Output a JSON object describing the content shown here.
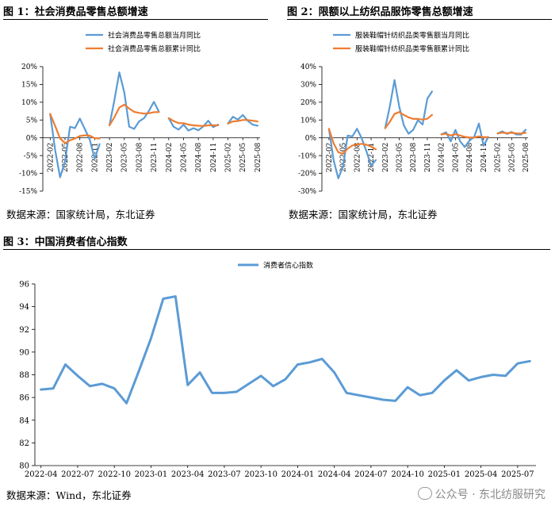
{
  "figure1": {
    "title": "图 1：社会消费品零售总额增速",
    "source": "数据来源：国家统计局，东北证券"
  },
  "figure2": {
    "title": "图 2：限额以上纺织品服饰零售总额增速",
    "source": "数据来源：国家统计局，东北证券"
  },
  "figure3": {
    "title": "图 3：中国消费者信心指数",
    "source": "数据来源：Wind，东北证券"
  },
  "watermark": {
    "text": "公众号 · 东北纺服研究",
    "icon": "wechat-icon"
  },
  "colors": {
    "blue": "#5b9bd5",
    "orange": "#ed7d31",
    "grid": "#d9d9d9"
  },
  "chart_data": [
    {
      "id": "fig1",
      "type": "line",
      "title": "",
      "ylim": [
        -15,
        20
      ],
      "yticks": [
        -15,
        -10,
        -5,
        0,
        5,
        10,
        15,
        20
      ],
      "ytick_labels": [
        "-15%",
        "-10%",
        "-5%",
        "0%",
        "5%",
        "10%",
        "15%",
        "20%"
      ],
      "grid": false,
      "legend_position": "top-center",
      "x": [
        "2022-01",
        "2022-02",
        "2022-03",
        "2022-04",
        "2022-05",
        "2022-06",
        "2022-07",
        "2022-08",
        "2022-09",
        "2022-10",
        "2022-11",
        "2022-12",
        "2023-01",
        "2023-02",
        "2023-03",
        "2023-04",
        "2023-05",
        "2023-06",
        "2023-07",
        "2023-08",
        "2023-09",
        "2023-10",
        "2023-11",
        "2023-12",
        "2024-01",
        "2024-02",
        "2024-03",
        "2024-04",
        "2024-05",
        "2024-06",
        "2024-07",
        "2024-08",
        "2024-09",
        "2024-10",
        "2024-11",
        "2024-12",
        "2025-01",
        "2025-02",
        "2025-03",
        "2025-04",
        "2025-05",
        "2025-06",
        "2025-07",
        "2025-08"
      ],
      "xtick_labels": [
        "2022-02",
        "2022-05",
        "2022-08",
        "2022-11",
        "2023-02",
        "2023-05",
        "2023-08",
        "2023-11",
        "2024-02",
        "2024-05",
        "2024-08",
        "2024-11",
        "2025-02",
        "2025-05",
        "2025-08"
      ],
      "series": [
        {
          "name": "社会消费品零售总额当月同比",
          "color": "#5b9bd5",
          "values": [
            null,
            6.7,
            -3.5,
            -11.1,
            -6.7,
            3.1,
            2.7,
            5.4,
            2.5,
            -0.5,
            -5.9,
            -1.8,
            null,
            3.5,
            10.6,
            18.4,
            12.7,
            3.1,
            2.5,
            4.6,
            5.5,
            7.6,
            10.1,
            7.4,
            null,
            5.5,
            3.1,
            2.3,
            3.7,
            2.0,
            2.7,
            2.1,
            3.2,
            4.8,
            3.0,
            3.7,
            null,
            4.0,
            5.9,
            5.1,
            6.4,
            4.8,
            3.7,
            3.4
          ]
        },
        {
          "name": "社会消费品零售总额累计同比",
          "color": "#ed7d31",
          "values": [
            null,
            6.7,
            3.3,
            -0.2,
            -1.5,
            -0.7,
            -0.2,
            0.5,
            0.7,
            0.6,
            -0.1,
            -0.2,
            null,
            3.5,
            5.8,
            8.5,
            9.3,
            8.2,
            7.3,
            7.0,
            6.8,
            6.9,
            7.2,
            7.2,
            null,
            5.5,
            4.7,
            4.1,
            4.1,
            3.7,
            3.5,
            3.4,
            3.3,
            3.5,
            3.5,
            3.5,
            null,
            4.0,
            4.6,
            4.7,
            5.0,
            5.0,
            4.8,
            4.6
          ]
        }
      ]
    },
    {
      "id": "fig2",
      "type": "line",
      "title": "",
      "ylim": [
        -30,
        40
      ],
      "yticks": [
        -30,
        -20,
        -10,
        0,
        10,
        20,
        30,
        40
      ],
      "ytick_labels": [
        "-30%",
        "-20%",
        "-10%",
        "0%",
        "10%",
        "20%",
        "30%",
        "40%"
      ],
      "grid": false,
      "legend_position": "top-center",
      "x": [
        "2022-01",
        "2022-02",
        "2022-03",
        "2022-04",
        "2022-05",
        "2022-06",
        "2022-07",
        "2022-08",
        "2022-09",
        "2022-10",
        "2022-11",
        "2022-12",
        "2023-01",
        "2023-02",
        "2023-03",
        "2023-04",
        "2023-05",
        "2023-06",
        "2023-07",
        "2023-08",
        "2023-09",
        "2023-10",
        "2023-11",
        "2023-12",
        "2024-01",
        "2024-02",
        "2024-03",
        "2024-04",
        "2024-05",
        "2024-06",
        "2024-07",
        "2024-08",
        "2024-09",
        "2024-10",
        "2024-11",
        "2024-12",
        "2025-01",
        "2025-02",
        "2025-03",
        "2025-04",
        "2025-05",
        "2025-06",
        "2025-07",
        "2025-08"
      ],
      "xtick_labels": [
        "2022-02",
        "2022-05",
        "2022-08",
        "2022-11",
        "2023-02",
        "2023-05",
        "2023-08",
        "2023-11",
        "2024-02",
        "2024-05",
        "2024-08",
        "2024-11",
        "2025-02",
        "2025-05",
        "2025-08"
      ],
      "series": [
        {
          "name": "服装鞋帽针纺织品类零售额当月同比",
          "color": "#5b9bd5",
          "values": [
            null,
            5.0,
            -12.7,
            -22.8,
            -16.2,
            1.2,
            0.8,
            5.1,
            -0.3,
            -7.5,
            -15.6,
            -12.5,
            null,
            5.4,
            17.7,
            32.4,
            17.6,
            6.9,
            2.3,
            4.5,
            9.9,
            7.5,
            22.0,
            26.0,
            null,
            1.9,
            3.1,
            -2.0,
            4.4,
            -1.9,
            -5.2,
            -1.6,
            0.4,
            8.0,
            -4.5,
            0.4,
            null,
            2.4,
            3.6,
            2.2,
            3.3,
            1.9,
            1.8,
            4.5
          ]
        },
        {
          "name": "服装鞋帽针纺织品类零售额累计同比",
          "color": "#ed7d31",
          "values": [
            null,
            5.0,
            -3.2,
            -8.1,
            -9.0,
            -6.1,
            -4.3,
            -3.8,
            -3.4,
            -3.9,
            -4.9,
            -6.5,
            null,
            5.4,
            9.0,
            13.4,
            14.5,
            12.8,
            11.5,
            10.6,
            10.6,
            10.2,
            10.7,
            12.9,
            null,
            1.9,
            2.3,
            1.3,
            2.0,
            1.3,
            0.5,
            0.2,
            0.2,
            0.8,
            0.3,
            0.3,
            null,
            2.4,
            2.9,
            2.6,
            2.8,
            2.5,
            2.4,
            2.8
          ]
        }
      ]
    },
    {
      "id": "fig3",
      "type": "line",
      "title": "",
      "ylim": [
        80,
        96
      ],
      "yticks": [
        80,
        82,
        84,
        86,
        88,
        90,
        92,
        94,
        96
      ],
      "ytick_labels": [
        "80",
        "82",
        "84",
        "86",
        "88",
        "90",
        "92",
        "94",
        "96"
      ],
      "grid": false,
      "legend_position": "top-center",
      "x": [
        "2022-04",
        "2022-05",
        "2022-06",
        "2022-07",
        "2022-08",
        "2022-09",
        "2022-10",
        "2022-11",
        "2022-12",
        "2023-01",
        "2023-02",
        "2023-03",
        "2023-04",
        "2023-05",
        "2023-06",
        "2023-07",
        "2023-08",
        "2023-09",
        "2023-10",
        "2023-11",
        "2023-12",
        "2024-01",
        "2024-02",
        "2024-03",
        "2024-04",
        "2024-05",
        "2024-06",
        "2024-07",
        "2024-08",
        "2024-09",
        "2024-10",
        "2024-11",
        "2024-12",
        "2025-01",
        "2025-02",
        "2025-03",
        "2025-04",
        "2025-05",
        "2025-06",
        "2025-07",
        "2025-08"
      ],
      "xtick_labels": [
        "2022-04",
        "2022-07",
        "2022-10",
        "2023-01",
        "2023-04",
        "2023-07",
        "2023-10",
        "2024-01",
        "2024-04",
        "2024-07",
        "2024-10",
        "2025-01",
        "2025-04",
        "2025-07"
      ],
      "series": [
        {
          "name": "消费者信心指数",
          "color": "#5b9bd5",
          "values": [
            86.7,
            86.8,
            88.9,
            87.9,
            87.0,
            87.2,
            86.8,
            85.5,
            88.3,
            91.2,
            94.7,
            94.9,
            87.1,
            88.2,
            86.4,
            86.4,
            86.5,
            87.2,
            87.9,
            87.0,
            87.6,
            88.9,
            89.1,
            89.4,
            88.2,
            86.4,
            86.2,
            86.0,
            85.8,
            85.7,
            86.9,
            86.2,
            86.4,
            87.5,
            88.4,
            87.5,
            87.8,
            88.0,
            87.9,
            89.0,
            89.2
          ]
        }
      ]
    }
  ]
}
